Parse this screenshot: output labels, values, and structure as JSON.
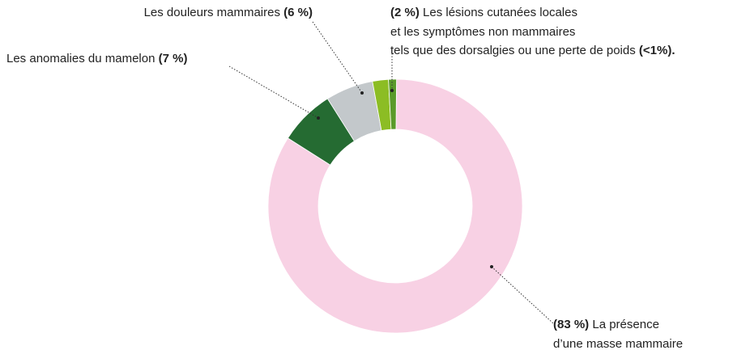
{
  "chart_data": {
    "type": "donut",
    "categories": [
      "La présence\nd’une masse mammaire",
      "Les anomalies du mamelon",
      "Les douleurs mammaires",
      "Les lésions cutanées locales",
      "et les symptômes non mammaires\ntels que des dorsalgies ou une perte de poids"
    ],
    "values": [
      83,
      7,
      6,
      2,
      1
    ],
    "value_labels": [
      "(83 %)",
      "(7 %)",
      "(6 %)",
      "(2 %)",
      "(<1%)."
    ],
    "colors": [
      "#f8d1e4",
      "#256b32",
      "#c3c8cb",
      "#8cbd24",
      "#5a9a2a"
    ]
  }
}
